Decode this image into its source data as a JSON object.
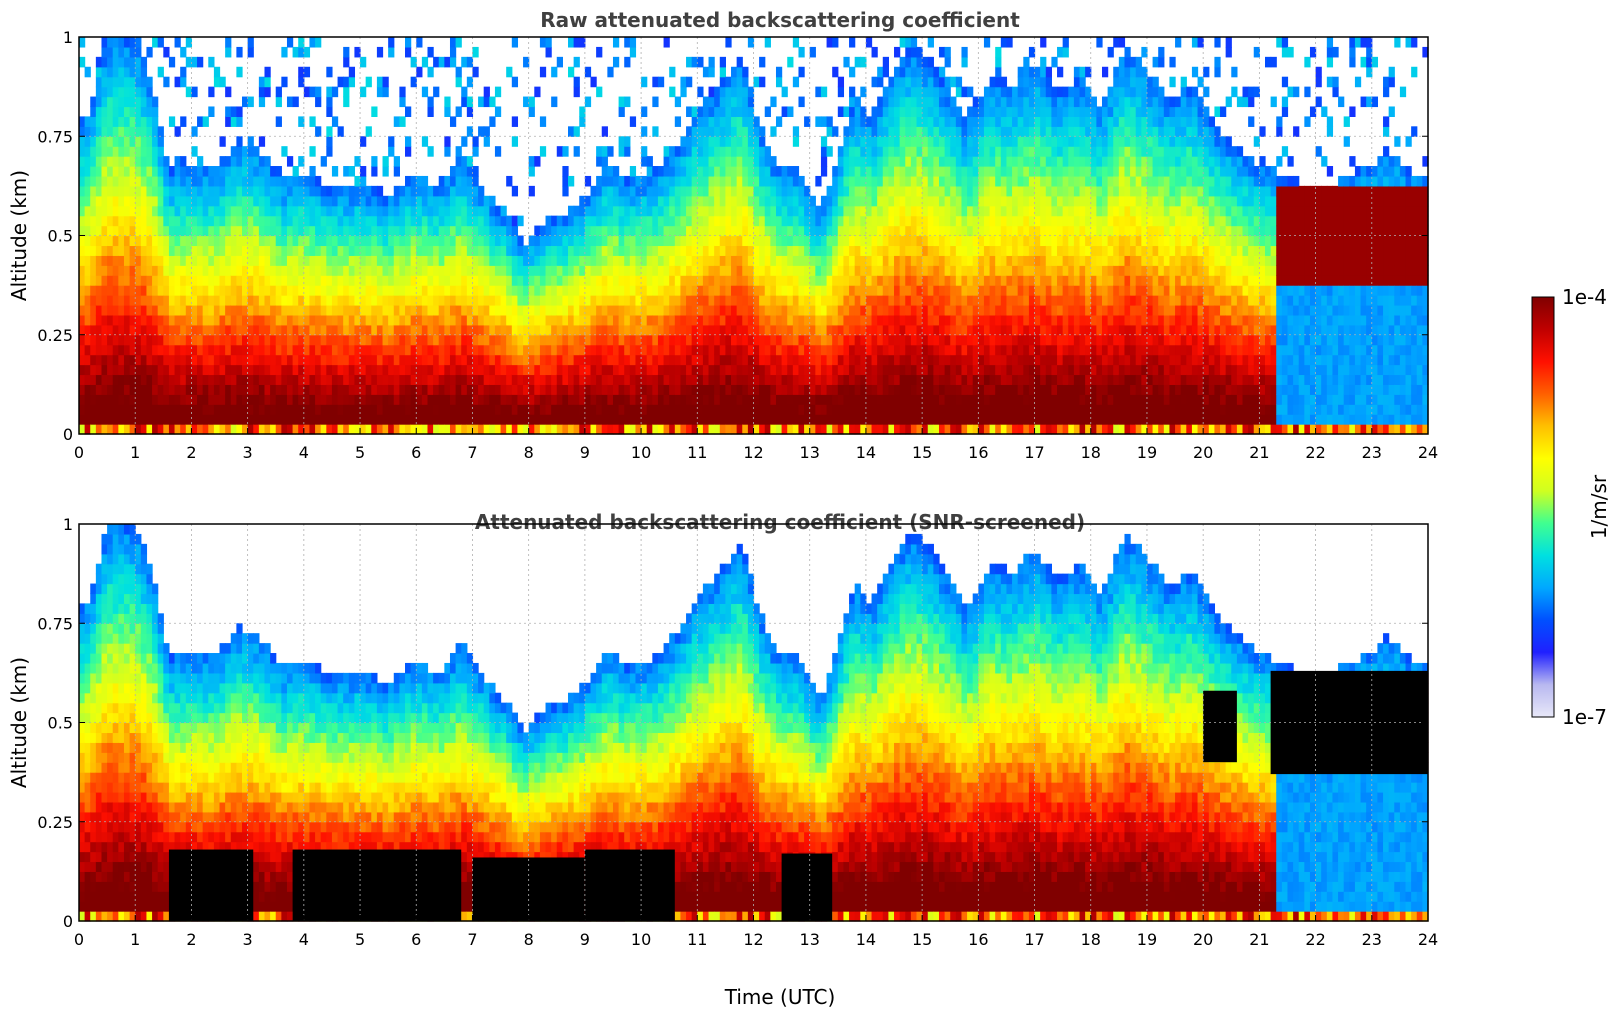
{
  "chart_data": [
    {
      "type": "heatmap",
      "title": "Raw attenuated backscattering coefficient",
      "xlabel": "",
      "ylabel": "Altitude (km)",
      "xlim": [
        0,
        24
      ],
      "ylim": [
        0,
        1
      ],
      "xticks": [
        "0",
        "1",
        "2",
        "3",
        "4",
        "5",
        "6",
        "7",
        "8",
        "9",
        "10",
        "11",
        "12",
        "13",
        "14",
        "15",
        "16",
        "17",
        "18",
        "19",
        "20",
        "21",
        "22",
        "23",
        "24"
      ],
      "yticks": [
        "0",
        "0.25",
        "0.5",
        "0.75",
        "1"
      ],
      "grid": true,
      "mask_low_snr": false,
      "top_profile": {
        "time": [
          0,
          0.2,
          0.5,
          0.8,
          1.0,
          1.3,
          1.6,
          2.0,
          2.4,
          2.8,
          3.2,
          3.6,
          4.0,
          4.5,
          5.0,
          5.5,
          6.0,
          6.4,
          6.8,
          7.2,
          7.6,
          7.9,
          8.3,
          8.7,
          9.0,
          9.4,
          9.8,
          10.2,
          10.6,
          11.0,
          11.4,
          11.8,
          12.1,
          12.4,
          12.8,
          13.2,
          13.5,
          13.8,
          14.1,
          14.4,
          14.8,
          15.1,
          15.5,
          15.8,
          16.2,
          16.6,
          17.0,
          17.4,
          17.8,
          18.2,
          18.6,
          19.0,
          19.4,
          19.8,
          20.2,
          20.6,
          21.0,
          21.5,
          22.0,
          22.5,
          23.0,
          23.3,
          23.7,
          24.0
        ],
        "altitude": [
          0.78,
          0.82,
          1.0,
          1.0,
          1.0,
          0.88,
          0.66,
          0.68,
          0.66,
          0.74,
          0.72,
          0.64,
          0.66,
          0.62,
          0.63,
          0.6,
          0.66,
          0.62,
          0.7,
          0.62,
          0.55,
          0.48,
          0.54,
          0.56,
          0.6,
          0.68,
          0.64,
          0.66,
          0.72,
          0.82,
          0.88,
          0.95,
          0.78,
          0.68,
          0.66,
          0.56,
          0.7,
          0.86,
          0.8,
          0.9,
          0.98,
          0.95,
          0.86,
          0.78,
          0.9,
          0.88,
          0.94,
          0.86,
          0.9,
          0.82,
          0.98,
          0.92,
          0.84,
          0.88,
          0.78,
          0.72,
          0.68,
          0.64,
          0.63,
          0.64,
          0.68,
          0.72,
          0.66,
          0.64
        ]
      }
    },
    {
      "type": "heatmap",
      "title": "Attenuated backscattering coefficient (SNR-screened)",
      "xlabel": "Time (UTC)",
      "ylabel": "Altitude (km)",
      "xlim": [
        0,
        24
      ],
      "ylim": [
        0,
        1
      ],
      "xticks": [
        "0",
        "1",
        "2",
        "3",
        "4",
        "5",
        "6",
        "7",
        "8",
        "9",
        "10",
        "11",
        "12",
        "13",
        "14",
        "15",
        "16",
        "17",
        "18",
        "19",
        "20",
        "21",
        "22",
        "23",
        "24"
      ],
      "yticks": [
        "0",
        "0.25",
        "0.5",
        "0.75",
        "1"
      ],
      "grid": true,
      "mask_low_snr": true,
      "masked_regions": [
        {
          "t0": 1.6,
          "t1": 3.1,
          "z0": 0.0,
          "z1": 0.18
        },
        {
          "t0": 3.8,
          "t1": 6.8,
          "z0": 0.0,
          "z1": 0.18
        },
        {
          "t0": 7.0,
          "t1": 9.0,
          "z0": 0.0,
          "z1": 0.16
        },
        {
          "t0": 9.0,
          "t1": 10.6,
          "z0": 0.0,
          "z1": 0.18
        },
        {
          "t0": 12.5,
          "t1": 13.4,
          "z0": 0.0,
          "z1": 0.17
        },
        {
          "t0": 20.0,
          "t1": 20.6,
          "z0": 0.4,
          "z1": 0.58
        },
        {
          "t0": 21.2,
          "t1": 24.0,
          "z0": 0.37,
          "z1": 0.63
        }
      ]
    }
  ],
  "colorbar": {
    "label": "1/m/sr",
    "max_label": "1e-4",
    "min_label": "1e-7",
    "log_min": -7,
    "log_max": -4,
    "colors": [
      "#e8e8f8",
      "#b8b8f0",
      "#2020ff",
      "#0050ff",
      "#00a8ff",
      "#00e0e0",
      "#40ff90",
      "#d0ff20",
      "#ffff00",
      "#ffc000",
      "#ff6000",
      "#ff1000",
      "#c00000",
      "#800000"
    ]
  }
}
